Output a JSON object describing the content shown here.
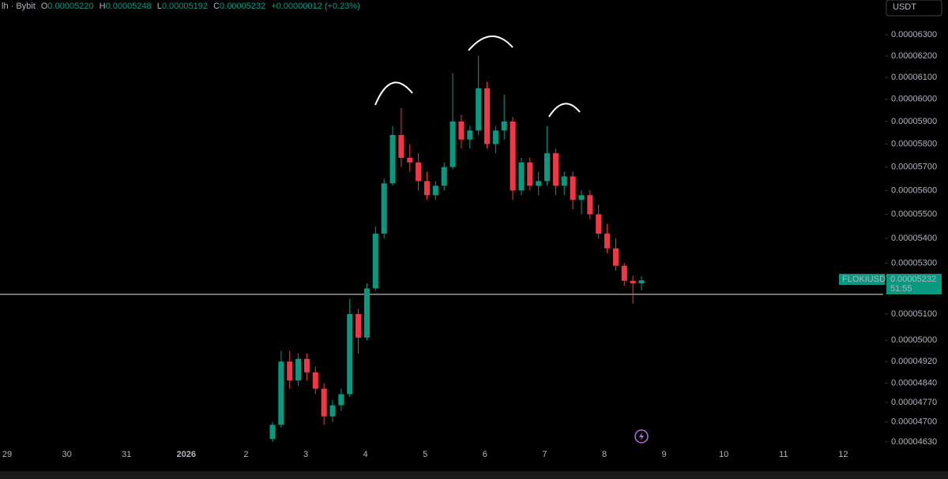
{
  "header": {
    "symbol": "lh · Bybit",
    "o_label": "O",
    "o": "0.00005220",
    "h_label": "H",
    "h": "0.00005248",
    "l_label": "L",
    "l": "0.00005192",
    "c_label": "C",
    "c": "0.00005232",
    "change": "+0.00000012 (+0.23%)"
  },
  "currency": "USDT",
  "price_label": {
    "symbol": "FLOKIUSDT",
    "price": "0.00005232",
    "countdown": "51:55"
  },
  "chart_data": {
    "type": "candlestick",
    "log_scale": true,
    "up_color": "#089981",
    "down_color": "#f23645",
    "x_labels": [
      "29",
      "30",
      "31",
      "2026",
      "2",
      "3",
      "4",
      "5",
      "6",
      "7",
      "8",
      "9",
      "10",
      "11",
      "12"
    ],
    "open": [
      4.64e-05,
      4.69e-05,
      4.92e-05,
      4.85e-05,
      4.93e-05,
      4.88e-05,
      4.82e-05,
      4.72e-05,
      4.76e-05,
      4.8e-05,
      5.1e-05,
      5.01e-05,
      5.2e-05,
      5.42e-05,
      5.63e-05,
      5.84e-05,
      5.74e-05,
      5.72e-05,
      5.64e-05,
      5.58e-05,
      5.62e-05,
      5.7e-05,
      5.9e-05,
      5.82e-05,
      5.86e-05,
      6.05e-05,
      5.8e-05,
      5.86e-05,
      5.9e-05,
      5.6e-05,
      5.72e-05,
      5.62e-05,
      5.64e-05,
      5.76e-05,
      5.62e-05,
      5.66e-05,
      5.56e-05,
      5.58e-05,
      5.5e-05,
      5.42e-05,
      5.36e-05,
      5.29e-05,
      5.23e-05,
      5.22e-05
    ],
    "high": [
      4.7e-05,
      4.96e-05,
      4.96e-05,
      4.95e-05,
      4.95e-05,
      4.9e-05,
      4.84e-05,
      4.78e-05,
      4.82e-05,
      5.16e-05,
      5.12e-05,
      5.22e-05,
      5.45e-05,
      5.65e-05,
      5.88e-05,
      5.96e-05,
      5.8e-05,
      5.76e-05,
      5.68e-05,
      5.64e-05,
      5.72e-05,
      6.12e-05,
      5.93e-05,
      5.88e-05,
      6.2e-05,
      6.08e-05,
      5.88e-05,
      6.02e-05,
      5.92e-05,
      5.74e-05,
      5.74e-05,
      5.68e-05,
      5.88e-05,
      5.78e-05,
      5.68e-05,
      5.68e-05,
      5.6e-05,
      5.6e-05,
      5.54e-05,
      5.46e-05,
      5.4e-05,
      5.3e-05,
      5.25e-05,
      5.248e-05
    ],
    "low": [
      4.63e-05,
      4.68e-05,
      4.82e-05,
      4.83e-05,
      4.85e-05,
      4.8e-05,
      4.69e-05,
      4.7e-05,
      4.74e-05,
      4.79e-05,
      4.95e-05,
      5e-05,
      5.19e-05,
      5.4e-05,
      5.62e-05,
      5.7e-05,
      5.68e-05,
      5.6e-05,
      5.56e-05,
      5.56e-05,
      5.6e-05,
      5.69e-05,
      5.78e-05,
      5.78e-05,
      5.84e-05,
      5.78e-05,
      5.76e-05,
      5.82e-05,
      5.56e-05,
      5.58e-05,
      5.6e-05,
      5.58e-05,
      5.62e-05,
      5.58e-05,
      5.58e-05,
      5.52e-05,
      5.5e-05,
      5.48e-05,
      5.4e-05,
      5.34e-05,
      5.27e-05,
      5.21e-05,
      5.14e-05,
      5.192e-05
    ],
    "close": [
      4.69e-05,
      4.92e-05,
      4.85e-05,
      4.93e-05,
      4.88e-05,
      4.82e-05,
      4.72e-05,
      4.76e-05,
      4.8e-05,
      5.1e-05,
      5.01e-05,
      5.2e-05,
      5.42e-05,
      5.63e-05,
      5.84e-05,
      5.74e-05,
      5.72e-05,
      5.64e-05,
      5.58e-05,
      5.62e-05,
      5.7e-05,
      5.9e-05,
      5.82e-05,
      5.86e-05,
      6.05e-05,
      5.8e-05,
      5.86e-05,
      5.9e-05,
      5.6e-05,
      5.72e-05,
      5.62e-05,
      5.64e-05,
      5.76e-05,
      5.62e-05,
      5.66e-05,
      5.56e-05,
      5.58e-05,
      5.5e-05,
      5.42e-05,
      5.36e-05,
      5.29e-05,
      5.23e-05,
      5.22e-05,
      5.232e-05
    ],
    "ylim": [
      4.616e-05,
      6.468e-05
    ],
    "yticks": [
      {
        "value": 6.3e-05,
        "label": "0.00006300"
      },
      {
        "value": 6.2e-05,
        "label": "0.00006200"
      },
      {
        "value": 6.1e-05,
        "label": "0.00006100"
      },
      {
        "value": 6e-05,
        "label": "0.00006000"
      },
      {
        "value": 5.9e-05,
        "label": "0.00005900"
      },
      {
        "value": 5.8e-05,
        "label": "0.00005800"
      },
      {
        "value": 5.7e-05,
        "label": "0.00005700"
      },
      {
        "value": 5.6e-05,
        "label": "0.00005600"
      },
      {
        "value": 5.5e-05,
        "label": "0.00005500"
      },
      {
        "value": 5.4e-05,
        "label": "0.00005400"
      },
      {
        "value": 5.3e-05,
        "label": "0.00005300"
      },
      {
        "value": 5.1e-05,
        "label": "0.00005100"
      },
      {
        "value": 5e-05,
        "label": "0.00005000"
      },
      {
        "value": 4.92e-05,
        "label": "0.00004920"
      },
      {
        "value": 4.84e-05,
        "label": "0.00004840"
      },
      {
        "value": 4.77e-05,
        "label": "0.00004770"
      },
      {
        "value": 4.7e-05,
        "label": "0.00004700"
      },
      {
        "value": 4.63e-05,
        "label": "0.00004630"
      }
    ]
  }
}
